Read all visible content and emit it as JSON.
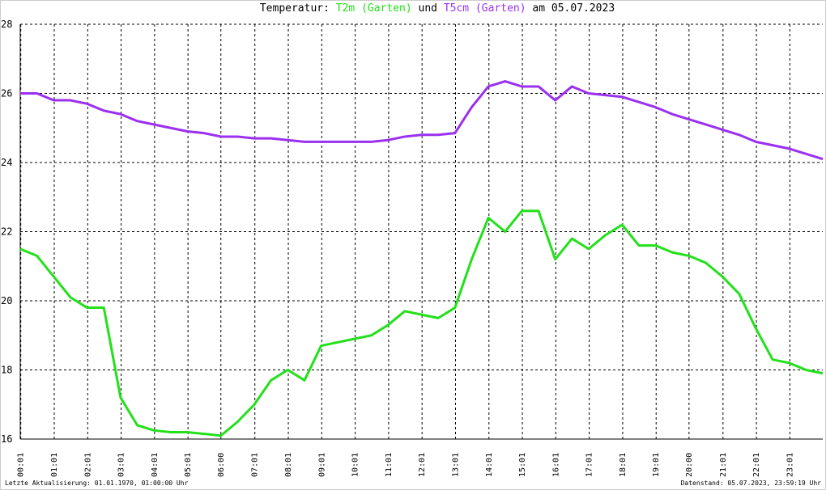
{
  "chart_data": {
    "type": "line",
    "title_parts": [
      "Temperatur:",
      "und",
      "am 05.07.2023"
    ],
    "notes": [
      "Letzte Aktualisierung: 01.01.1970, 01:00:00 Uhr",
      "Datenstand: 05.07.2023, 23:59:19 Uhr"
    ],
    "x": [
      0,
      30,
      60,
      90,
      120,
      150,
      180,
      210,
      240,
      270,
      300,
      330,
      360,
      390,
      420,
      450,
      480,
      510,
      540,
      570,
      600,
      630,
      660,
      690,
      720,
      750,
      780,
      810,
      840,
      870,
      900,
      930,
      960,
      990,
      1020,
      1050,
      1080,
      1110,
      1140,
      1170,
      1200,
      1230,
      1260,
      1290,
      1320,
      1350,
      1380,
      1410,
      1440
    ],
    "series": [
      {
        "name": "T2m (Garten)",
        "color": "#22e01a",
        "values": [
          21.5,
          21.3,
          20.7,
          20.1,
          19.8,
          19.8,
          17.2,
          16.4,
          16.25,
          16.2,
          16.2,
          16.15,
          16.1,
          16.5,
          17.0,
          17.7,
          18.0,
          17.7,
          18.7,
          18.8,
          18.9,
          19.0,
          19.3,
          19.7,
          19.6,
          19.5,
          19.8,
          21.2,
          22.4,
          22.0,
          22.6,
          22.6,
          21.2,
          21.8,
          21.5,
          21.9,
          22.2,
          21.6,
          21.6,
          21.4,
          21.3,
          21.1,
          20.7,
          20.2,
          19.2,
          18.3,
          18.2,
          18.0,
          17.9
        ]
      },
      {
        "name": "T5cm (Garten)",
        "color": "#9b30f0",
        "values": [
          26.0,
          26.0,
          25.8,
          25.8,
          25.7,
          25.5,
          25.4,
          25.2,
          25.1,
          25.0,
          24.9,
          24.85,
          24.75,
          24.75,
          24.7,
          24.7,
          24.65,
          24.6,
          24.6,
          24.6,
          24.6,
          24.6,
          24.65,
          24.75,
          24.8,
          24.8,
          24.85,
          25.6,
          26.2,
          26.35,
          26.2,
          26.2,
          25.8,
          26.2,
          26.0,
          25.95,
          25.9,
          25.75,
          25.6,
          25.4,
          25.25,
          25.1,
          24.95,
          24.8,
          24.6,
          24.5,
          24.4,
          24.25,
          24.1
        ]
      }
    ],
    "xlim": [
      0,
      1440
    ],
    "xticks": [
      {
        "value": 1,
        "label": "00:01"
      },
      {
        "value": 61,
        "label": "01:01"
      },
      {
        "value": 121,
        "label": "02:01"
      },
      {
        "value": 181,
        "label": "03:01"
      },
      {
        "value": 241,
        "label": "04:01"
      },
      {
        "value": 301,
        "label": "05:01"
      },
      {
        "value": 360,
        "label": "06:00"
      },
      {
        "value": 421,
        "label": "07:01"
      },
      {
        "value": 481,
        "label": "08:01"
      },
      {
        "value": 541,
        "label": "09:01"
      },
      {
        "value": 601,
        "label": "10:01"
      },
      {
        "value": 661,
        "label": "11:01"
      },
      {
        "value": 721,
        "label": "12:01"
      },
      {
        "value": 781,
        "label": "13:01"
      },
      {
        "value": 841,
        "label": "14:01"
      },
      {
        "value": 901,
        "label": "15:01"
      },
      {
        "value": 961,
        "label": "16:01"
      },
      {
        "value": 1021,
        "label": "17:01"
      },
      {
        "value": 1081,
        "label": "18:01"
      },
      {
        "value": 1141,
        "label": "19:01"
      },
      {
        "value": 1200,
        "label": "20:00"
      },
      {
        "value": 1261,
        "label": "21:01"
      },
      {
        "value": 1321,
        "label": "22:01"
      },
      {
        "value": 1381,
        "label": "23:01"
      }
    ],
    "ylim": [
      16,
      28
    ],
    "yticks": [
      16,
      18,
      20,
      22,
      24,
      26,
      28
    ],
    "grid": true
  }
}
